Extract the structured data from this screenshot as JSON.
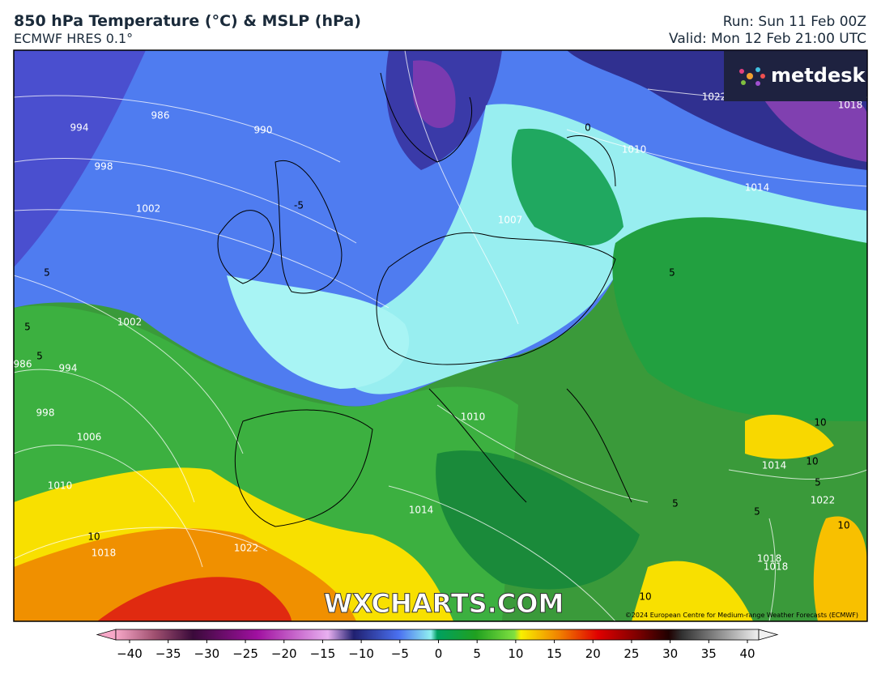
{
  "header": {
    "title": "850 hPa Temperature (°C) & MSLP (hPa)",
    "subtitle": "ECMWF HRES 0.1°",
    "run": "Run: Sun 11 Feb 00Z",
    "valid": "Valid: Mon 12 Feb 21:00 UTC"
  },
  "logo": "metdesk",
  "map": {
    "watermark": "WXCHARTS.COM",
    "copyright": "©2024 European Centre for Medium-range Weather Forecasts (ECMWF)",
    "isobar_labels": [
      "986",
      "994",
      "998",
      "1002",
      "990",
      "1022",
      "1010",
      "1014",
      "1007",
      "1002",
      "986",
      "994",
      "998",
      "1006",
      "1010",
      "1018",
      "1022",
      "1010",
      "1014",
      "1018",
      "1022",
      "1014",
      "1018",
      "1018"
    ],
    "temperature_labels": [
      "5",
      "0",
      "-5",
      "5",
      "5",
      "5",
      "5",
      "10",
      "10",
      "10",
      "5",
      "5",
      "10",
      "10"
    ]
  },
  "colorbar": {
    "ticks": [
      "−40",
      "−35",
      "−30",
      "−25",
      "−20",
      "−15",
      "−10",
      "−5",
      "0",
      "5",
      "10",
      "15",
      "20",
      "25",
      "30",
      "35",
      "40"
    ]
  }
}
